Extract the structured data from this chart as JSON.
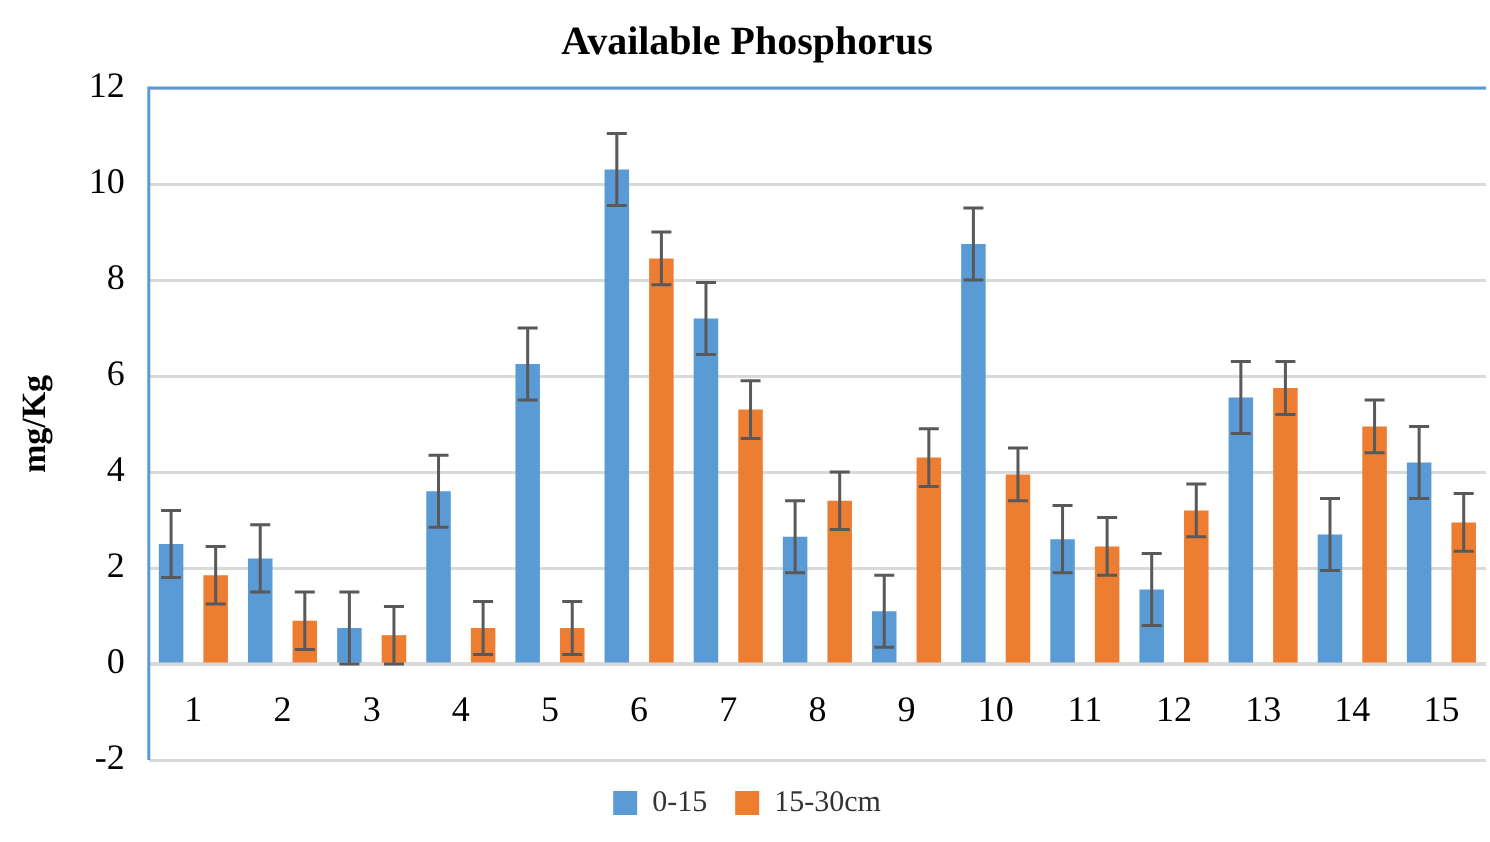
{
  "chart_data": {
    "type": "bar",
    "title": "Available Phosphorus",
    "ylabel": "mg/Kg",
    "categories": [
      "1",
      "2",
      "3",
      "4",
      "5",
      "6",
      "7",
      "8",
      "9",
      "10",
      "11",
      "12",
      "13",
      "14",
      "15"
    ],
    "series": [
      {
        "name": "0-15",
        "color": "#5b9bd5",
        "values": [
          2.5,
          2.2,
          0.75,
          3.6,
          6.25,
          10.3,
          7.2,
          2.65,
          1.1,
          8.75,
          2.6,
          1.55,
          5.55,
          2.7,
          4.2
        ],
        "errors": [
          0.7,
          0.7,
          0.75,
          0.75,
          0.75,
          0.75,
          0.75,
          0.75,
          0.75,
          0.75,
          0.7,
          0.75,
          0.75,
          0.75,
          0.75
        ]
      },
      {
        "name": "15-30cm",
        "color": "#ed7d31",
        "values": [
          1.85,
          0.9,
          0.6,
          0.75,
          0.75,
          8.45,
          5.3,
          3.4,
          4.3,
          3.95,
          2.45,
          3.2,
          5.75,
          4.95,
          2.95
        ],
        "errors": [
          0.6,
          0.6,
          0.6,
          0.55,
          0.55,
          0.55,
          0.6,
          0.6,
          0.6,
          0.55,
          0.6,
          0.55,
          0.55,
          0.55,
          0.6
        ]
      }
    ],
    "ylim": [
      -2,
      12
    ],
    "yticks": [
      -2,
      0,
      2,
      4,
      6,
      8,
      10,
      12
    ],
    "grid": "y",
    "legend": "bottom"
  }
}
